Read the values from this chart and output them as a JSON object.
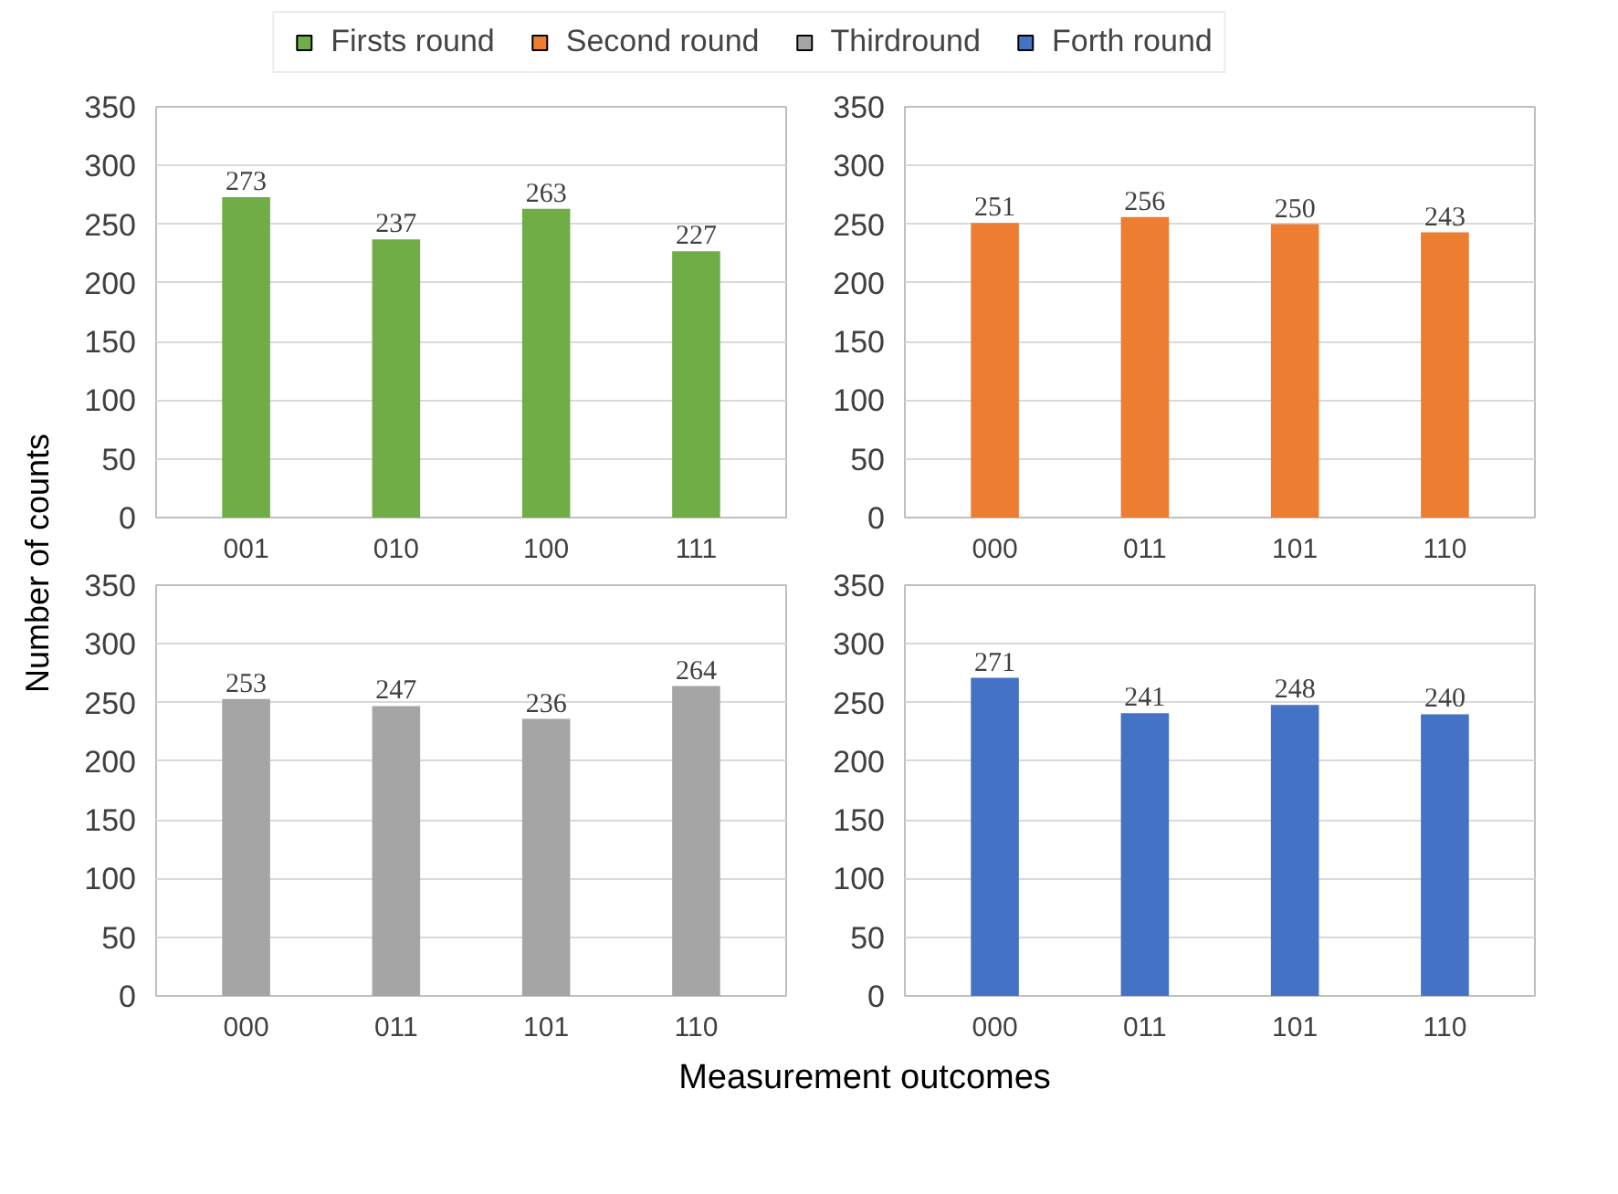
{
  "chart_data": [
    {
      "type": "bar",
      "categories": [
        "001",
        "010",
        "100",
        "111"
      ],
      "ylabel": "Number of counts",
      "xlabel": "Measurement outcomes",
      "ylim": [
        0,
        350
      ],
      "yticks": [
        0,
        50,
        100,
        150,
        200,
        250,
        300,
        350
      ],
      "grid": "y",
      "legend": "top",
      "data_labels": true,
      "series": [
        {
          "name": "Firsts round",
          "color": "#70ad47",
          "values": [
            273,
            237,
            263,
            227
          ]
        }
      ]
    },
    {
      "type": "bar",
      "categories": [
        "000",
        "011",
        "101",
        "110"
      ],
      "ylim": [
        0,
        350
      ],
      "yticks": [
        0,
        50,
        100,
        150,
        200,
        250,
        300,
        350
      ],
      "grid": "y",
      "legend": "top",
      "data_labels": true,
      "series": [
        {
          "name": "Second round",
          "color": "#ed7d31",
          "values": [
            251,
            256,
            250,
            243
          ]
        }
      ]
    },
    {
      "type": "bar",
      "categories": [
        "000",
        "011",
        "101",
        "110"
      ],
      "ylim": [
        0,
        350
      ],
      "yticks": [
        0,
        50,
        100,
        150,
        200,
        250,
        300,
        350
      ],
      "grid": "y",
      "legend": "top",
      "data_labels": true,
      "series": [
        {
          "name": "Thirdround",
          "color": "#a5a5a5",
          "values": [
            253,
            247,
            236,
            264
          ]
        }
      ]
    },
    {
      "type": "bar",
      "categories": [
        "000",
        "011",
        "101",
        "110"
      ],
      "ylim": [
        0,
        350
      ],
      "yticks": [
        0,
        50,
        100,
        150,
        200,
        250,
        300,
        350
      ],
      "grid": "y",
      "legend": "top",
      "data_labels": true,
      "series": [
        {
          "name": "Forth round",
          "color": "#4472c4",
          "values": [
            271,
            241,
            248,
            240
          ]
        }
      ]
    }
  ]
}
